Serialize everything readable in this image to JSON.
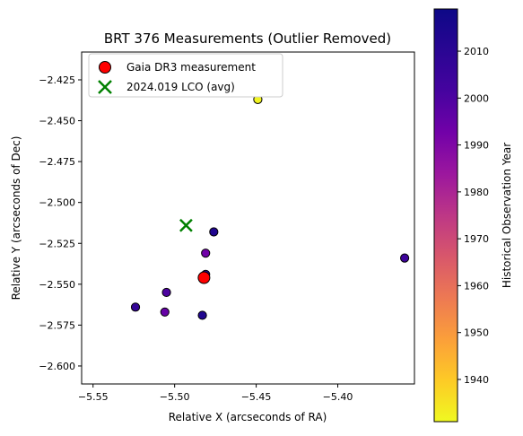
{
  "chart_data": {
    "type": "scatter",
    "title": "BRT 376 Measurements (Outlier Removed)",
    "xlabel": "Relative X (arcseconds of RA)",
    "ylabel": "Relative Y (arcseconds of Dec)",
    "xlim": [
      -5.557,
      -5.353
    ],
    "ylim": [
      -2.611,
      -2.408
    ],
    "x_ticks": [
      -5.55,
      -5.5,
      -5.45,
      -5.4
    ],
    "x_tick_labels": [
      "−5.55",
      "−5.50",
      "−5.45",
      "−5.40"
    ],
    "y_ticks": [
      -2.425,
      -2.45,
      -2.475,
      -2.5,
      -2.525,
      -2.55,
      -2.575,
      -2.6
    ],
    "y_tick_labels": [
      "−2.425",
      "−2.450",
      "−2.475",
      "−2.500",
      "−2.525",
      "−2.550",
      "−2.575",
      "−2.600"
    ],
    "grid": false,
    "colorbar": {
      "label": "Historical Observation Year",
      "range": [
        1931,
        2019
      ],
      "colormap": "plasma",
      "ticks": [
        1940,
        1950,
        1960,
        1970,
        1980,
        1990,
        2000,
        2010
      ],
      "tick_labels": [
        "1940",
        "1950",
        "1960",
        "1970",
        "1980",
        "1990",
        "2000",
        "2010"
      ]
    },
    "historical_points": [
      {
        "x": -5.449,
        "y": -2.437,
        "year": 1932
      },
      {
        "x": -5.476,
        "y": -2.518,
        "year": 2013
      },
      {
        "x": -5.481,
        "y": -2.531,
        "year": 1993
      },
      {
        "x": -5.481,
        "y": -2.544,
        "year": 2010
      },
      {
        "x": -5.505,
        "y": -2.555,
        "year": 2000
      },
      {
        "x": -5.524,
        "y": -2.564,
        "year": 2007
      },
      {
        "x": -5.506,
        "y": -2.567,
        "year": 1995
      },
      {
        "x": -5.483,
        "y": -2.569,
        "year": 2013
      },
      {
        "x": -5.359,
        "y": -2.534,
        "year": 2004
      }
    ],
    "special_points": [
      {
        "name": "Gaia DR3 measurement",
        "x": -5.482,
        "y": -2.546,
        "marker": "circle",
        "color": "#ff0000"
      },
      {
        "name": "2024.019 LCO (avg)",
        "x": -5.493,
        "y": -2.514,
        "marker": "x",
        "color": "#008000"
      }
    ],
    "legend_position": "top-left"
  }
}
